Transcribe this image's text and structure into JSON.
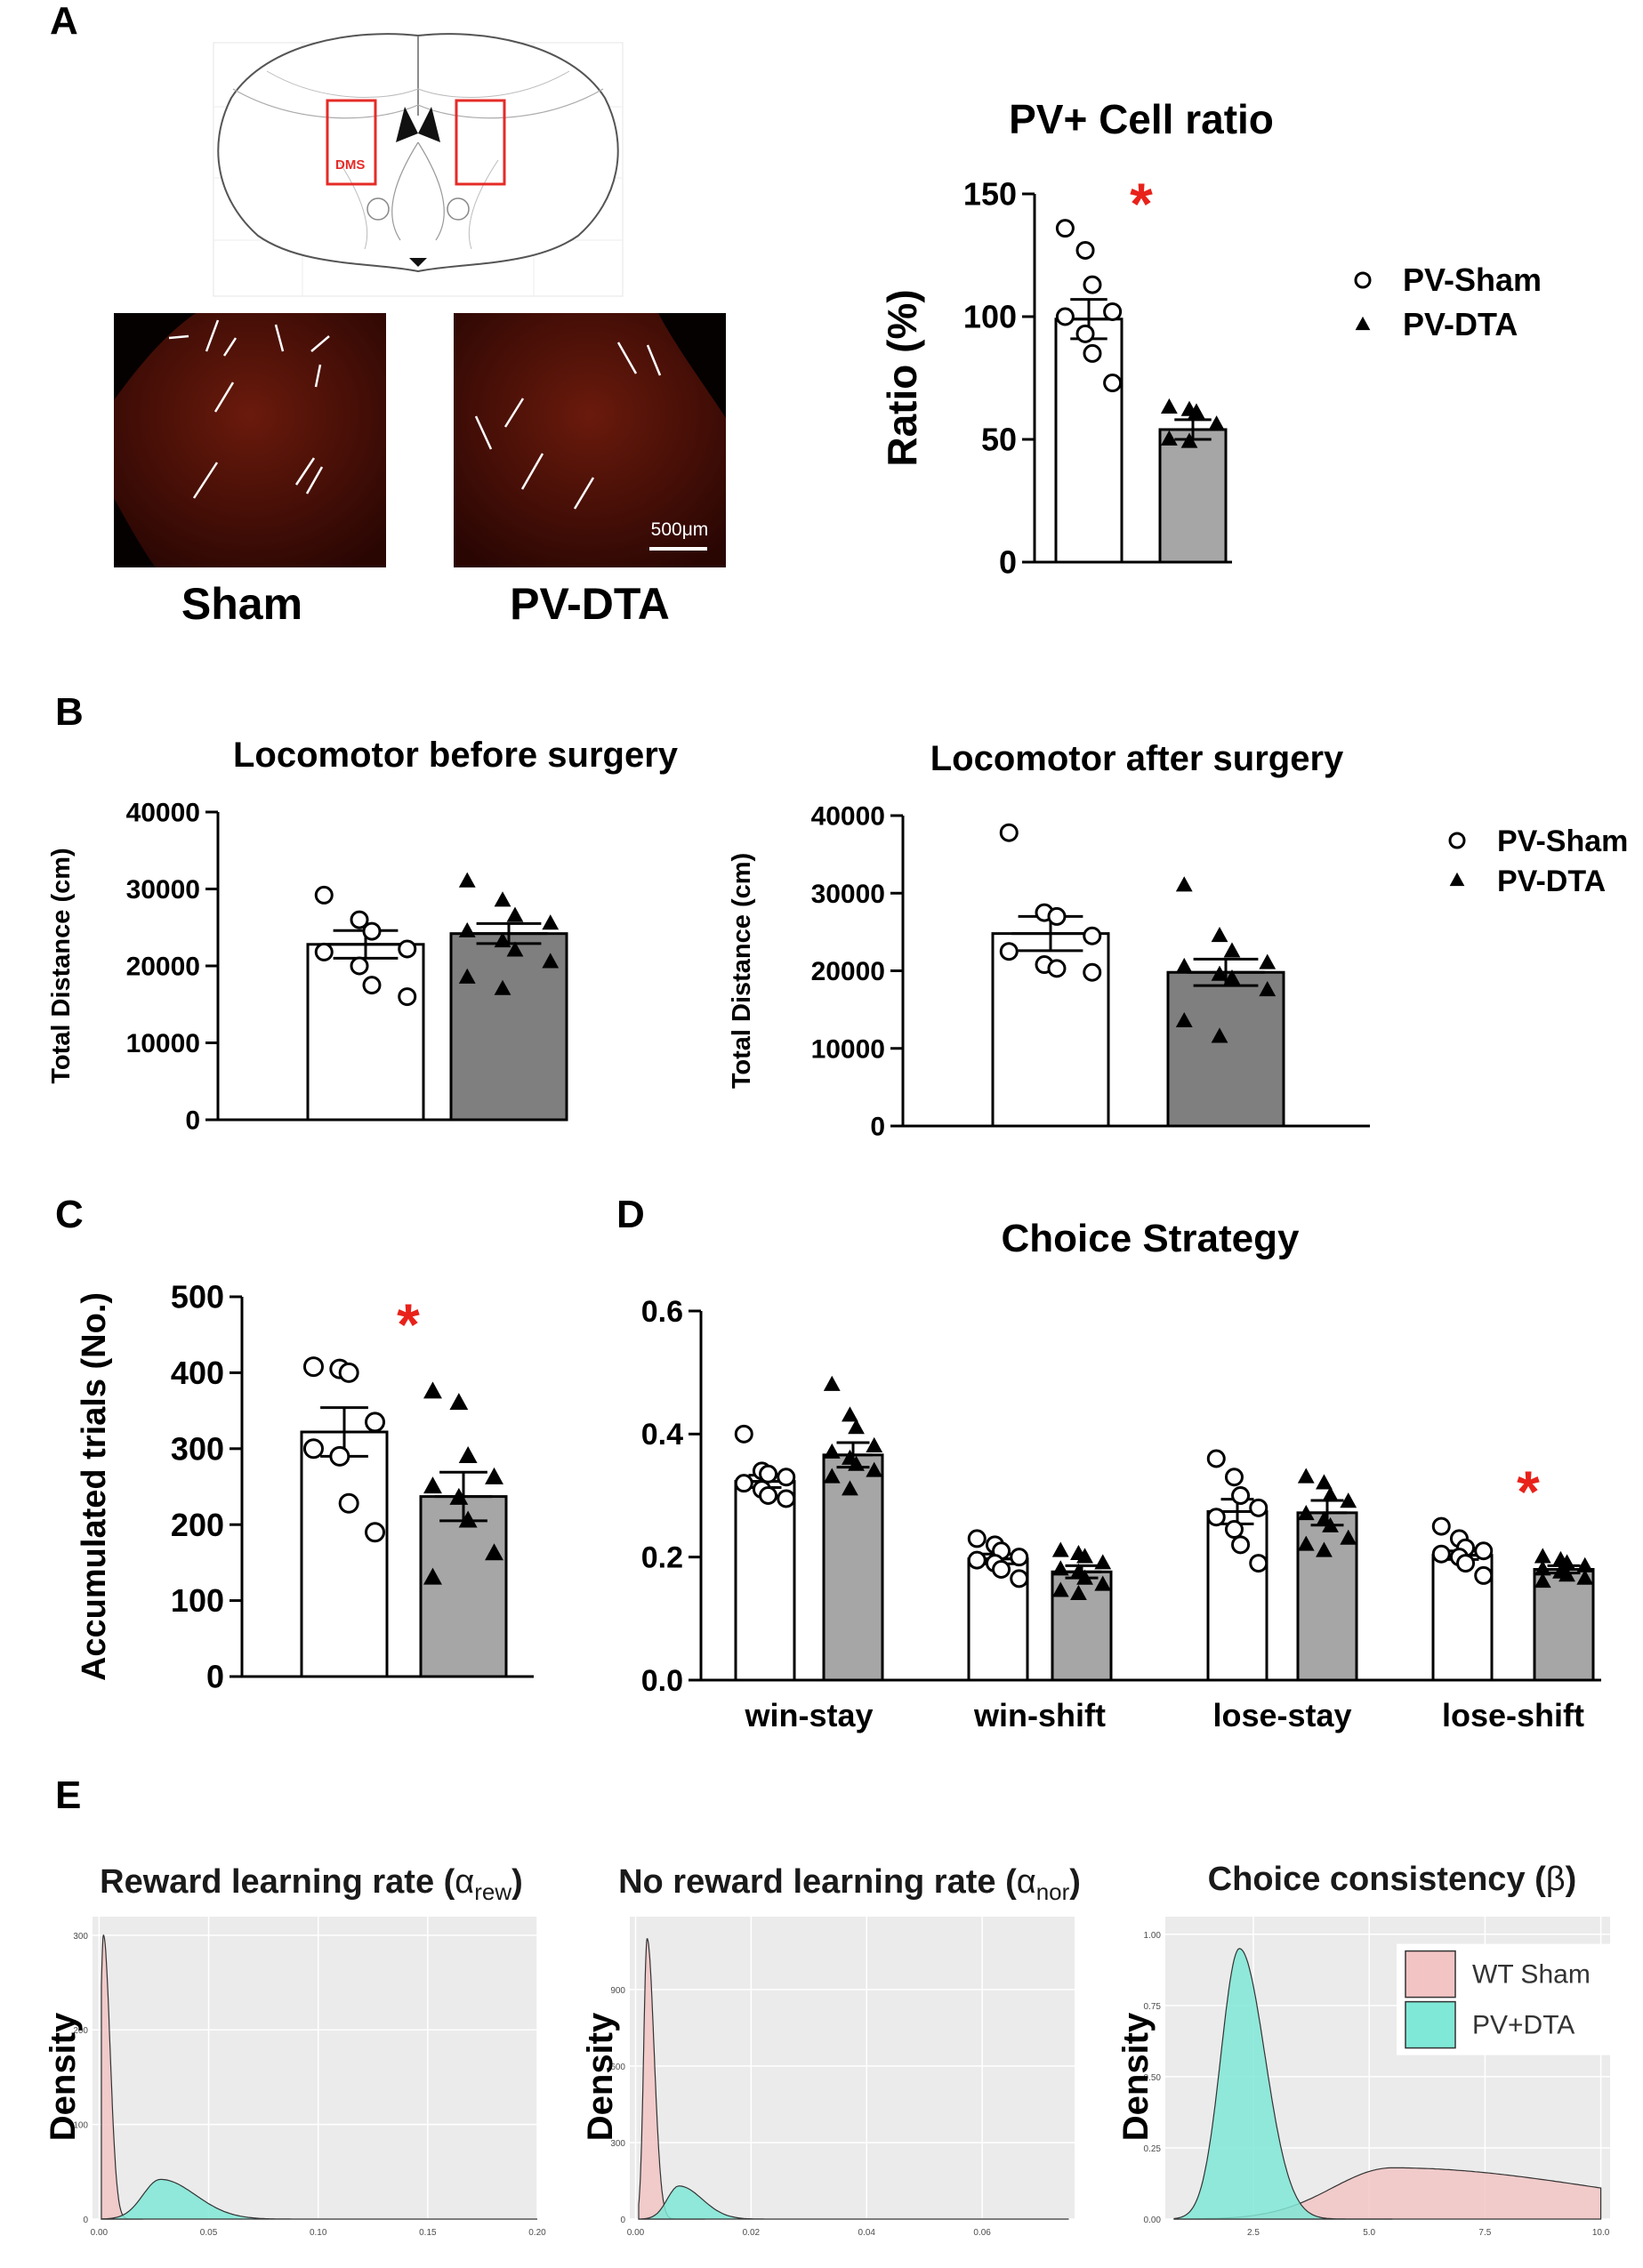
{
  "figure": {
    "panel_labels": [
      "A",
      "B",
      "C",
      "D",
      "E"
    ],
    "colors": {
      "sham": "#ffffff",
      "dta": "#a6a6a6",
      "dta_dark": "#7f7f7f",
      "star": "#e8221b",
      "brain_box": "#e52b27",
      "micro": "#3a0a04",
      "wt": "#f2c4c4",
      "pvdta": "#7fe8d6",
      "panel_bg": "#ebebeb"
    }
  },
  "panel_a": {
    "atlas_label": "DMS",
    "micrographs": [
      {
        "label": "Sham"
      },
      {
        "label": "PV-DTA",
        "scale_bar": "500μm"
      }
    ]
  },
  "chart_data": [
    {
      "id": "pv_ratio",
      "type": "bar",
      "title": "PV+ Cell  ratio",
      "xlabel": "",
      "ylabel": "Ratio (%)",
      "ylim": [
        0,
        150
      ],
      "yticks": [
        0,
        50,
        100,
        150
      ],
      "categories": [
        "PV-Sham",
        "PV-DTA"
      ],
      "values": [
        99,
        54
      ],
      "sem": [
        8,
        4
      ],
      "points": [
        [
          136,
          127,
          113,
          102,
          100,
          93,
          85,
          73
        ],
        [
          63,
          62,
          61,
          56,
          50,
          49
        ]
      ],
      "legend": [
        "PV-Sham",
        "PV-DTA"
      ],
      "significance": [
        "*"
      ]
    },
    {
      "id": "loco_before",
      "type": "bar",
      "title": "Locomotor before surgery",
      "xlabel": "",
      "ylabel": "Total Distance (cm)",
      "ylim": [
        0,
        40000
      ],
      "yticks": [
        0,
        10000,
        20000,
        30000,
        40000
      ],
      "categories": [
        "PV-Sham",
        "PV-DTA"
      ],
      "values": [
        22800,
        24200
      ],
      "sem": [
        1800,
        1300
      ],
      "points": [
        [
          29200,
          26000,
          24500,
          22200,
          21800,
          20000,
          17500,
          16000
        ],
        [
          31000,
          28500,
          26500,
          25500,
          24500,
          23200,
          22000,
          20500,
          18500,
          17000
        ]
      ]
    },
    {
      "id": "loco_after",
      "type": "bar",
      "title": "Locomotor after surgery",
      "xlabel": "",
      "ylabel": "Total Distance (cm)",
      "ylim": [
        0,
        40000
      ],
      "yticks": [
        0,
        10000,
        20000,
        30000,
        40000
      ],
      "categories": [
        "PV-Sham",
        "PV-DTA"
      ],
      "values": [
        24800,
        19800
      ],
      "sem": [
        2200,
        1700
      ],
      "points": [
        [
          37800,
          27500,
          27000,
          24500,
          22500,
          20800,
          20300,
          19800
        ],
        [
          31000,
          24500,
          22500,
          21000,
          20500,
          19500,
          19000,
          17500,
          13500,
          11500
        ]
      ],
      "legend": [
        "PV-Sham",
        "PV-DTA"
      ]
    },
    {
      "id": "accumulated_trials",
      "type": "bar",
      "title": "",
      "xlabel": "",
      "ylabel": "Accumulated trials (No.)",
      "ylim": [
        0,
        500
      ],
      "yticks": [
        0,
        100,
        200,
        300,
        400,
        500
      ],
      "categories": [
        "PV-Sham",
        "PV-DTA"
      ],
      "values": [
        322,
        237
      ],
      "sem": [
        32,
        32
      ],
      "points": [
        [
          408,
          405,
          400,
          335,
          300,
          290,
          228,
          190
        ],
        [
          375,
          360,
          290,
          262,
          250,
          235,
          205,
          162,
          130
        ]
      ],
      "significance": [
        "*"
      ]
    },
    {
      "id": "choice_strategy",
      "type": "bar",
      "title": "Choice Strategy",
      "xlabel": "",
      "ylabel": "",
      "ylim": [
        0,
        0.6
      ],
      "yticks": [
        0.0,
        0.2,
        0.4,
        0.6
      ],
      "categories": [
        "win-stay",
        "win-shift",
        "lose-stay",
        "lose-shift"
      ],
      "series": [
        {
          "name": "PV-Sham",
          "values": [
            0.323,
            0.197,
            0.274,
            0.203
          ],
          "sem": [
            0.01,
            0.008,
            0.02,
            0.007
          ],
          "points": [
            [
              0.4,
              0.34,
              0.335,
              0.33,
              0.32,
              0.31,
              0.3,
              0.295
            ],
            [
              0.23,
              0.22,
              0.21,
              0.2,
              0.195,
              0.19,
              0.18,
              0.165
            ],
            [
              0.36,
              0.33,
              0.3,
              0.28,
              0.265,
              0.245,
              0.22,
              0.19
            ],
            [
              0.25,
              0.23,
              0.215,
              0.21,
              0.205,
              0.2,
              0.19,
              0.17
            ]
          ]
        },
        {
          "name": "PV-DTA",
          "values": [
            0.366,
            0.176,
            0.272,
            0.18
          ],
          "sem": [
            0.02,
            0.01,
            0.02,
            0.006
          ],
          "points": [
            [
              0.48,
              0.43,
              0.41,
              0.38,
              0.37,
              0.36,
              0.35,
              0.34,
              0.33,
              0.31
            ],
            [
              0.21,
              0.205,
              0.2,
              0.19,
              0.18,
              0.175,
              0.165,
              0.155,
              0.145,
              0.14
            ],
            [
              0.33,
              0.32,
              0.3,
              0.29,
              0.27,
              0.26,
              0.25,
              0.23,
              0.22,
              0.21
            ],
            [
              0.2,
              0.195,
              0.19,
              0.185,
              0.18,
              0.175,
              0.17,
              0.165,
              0.16
            ]
          ]
        }
      ],
      "significance": [
        "lose-shift: *"
      ]
    },
    {
      "id": "density_alpha_rew",
      "type": "area",
      "title": "Reward learning rate (",
      "title_symbol": "α",
      "title_sub": "rew",
      "title_end": ")",
      "xlabel": "",
      "ylabel": "Density",
      "xlim": [
        -0.003,
        0.2
      ],
      "ylim": [
        0,
        310
      ],
      "xticks": [
        "0.00",
        "0.05",
        "0.10",
        "0.15",
        "0.20"
      ],
      "yticks": [
        "0",
        "100",
        "200",
        "300"
      ],
      "series": [
        {
          "name": "WT Sham",
          "mode": 0.002,
          "peak": 300,
          "left_width": 0.0015,
          "right_width": 0.003,
          "x_end": 0.02
        },
        {
          "name": "PV+DTA",
          "mode": 0.028,
          "peak": 42,
          "left_width": 0.008,
          "right_width": 0.016,
          "x_end": 0.2
        }
      ]
    },
    {
      "id": "density_alpha_nor",
      "type": "area",
      "title": "No reward learning rate (",
      "title_symbol": "α",
      "title_sub": "nor",
      "title_end": ")",
      "xlabel": "",
      "ylabel": "Density",
      "xlim": [
        -0.001,
        0.076
      ],
      "ylim": [
        0,
        1150
      ],
      "xticks": [
        "0.00",
        "0.02",
        "0.04",
        "0.06"
      ],
      "yticks": [
        "0",
        "300",
        "600",
        "900"
      ],
      "series": [
        {
          "name": "WT Sham",
          "mode": 0.002,
          "peak": 1100,
          "left_width": 0.0006,
          "right_width": 0.0012,
          "x_end": 0.012
        },
        {
          "name": "PV+DTA",
          "mode": 0.0075,
          "peak": 130,
          "left_width": 0.002,
          "right_width": 0.004,
          "x_end": 0.075
        }
      ]
    },
    {
      "id": "density_beta",
      "type": "area",
      "title": "Choice consistency (",
      "title_symbol": "β",
      "title_end": ")",
      "xlabel": "",
      "ylabel": "Density",
      "xlim": [
        0.6,
        10.2
      ],
      "ylim": [
        0,
        1.03
      ],
      "xticks": [
        "2.5",
        "5.0",
        "7.5",
        "10.0"
      ],
      "yticks": [
        "0.00",
        "0.25",
        "0.50",
        "0.75",
        "1.00"
      ],
      "legend": [
        "WT Sham",
        "PV+DTA"
      ],
      "series": [
        {
          "name": "WT Sham",
          "mode": 5.5,
          "peak": 0.18,
          "left_width": 1.3,
          "right_width": 4.5,
          "x_end": 10.0
        },
        {
          "name": "PV+DTA",
          "mode": 2.2,
          "peak": 0.95,
          "left_width": 0.4,
          "right_width": 0.55,
          "x_end": 5.5
        }
      ]
    }
  ]
}
